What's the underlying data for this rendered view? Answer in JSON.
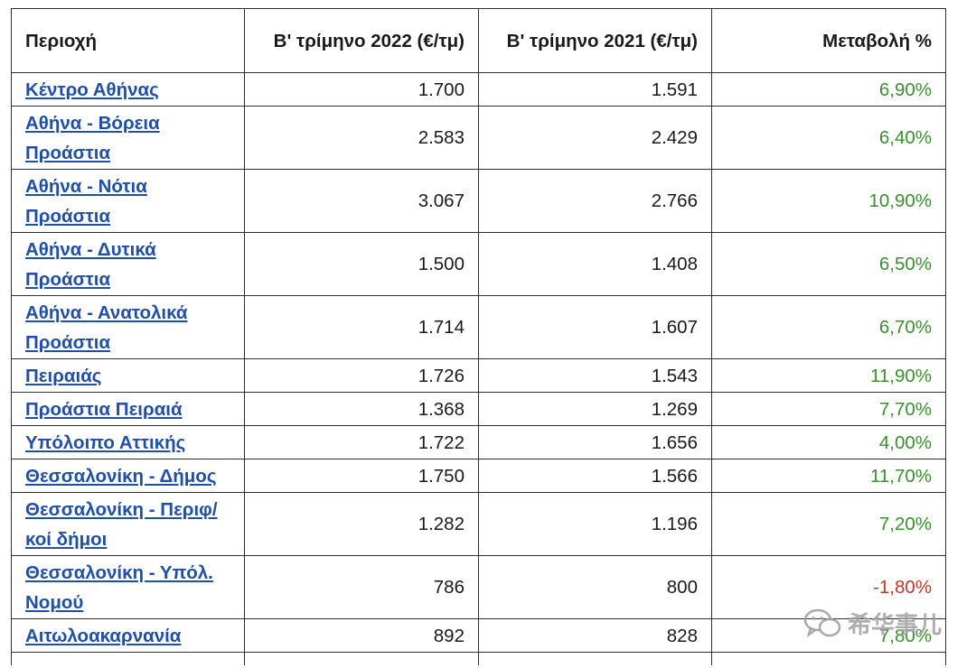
{
  "table": {
    "headers": {
      "area": "Περιοχή",
      "q2_2022": "Β' τρίμηνο 2022 (€/τμ)",
      "q2_2021": "Β' τρίμηνο 2021 (€/τμ)",
      "change": "Μεταβολή %"
    },
    "rows": [
      {
        "area": "Κέντρο Αθήνας",
        "q2_2022": "1.700",
        "q2_2021": "1.591",
        "change": "6,90%",
        "negative": false
      },
      {
        "area": "Αθήνα - Βόρεια Προάστια",
        "q2_2022": "2.583",
        "q2_2021": "2.429",
        "change": "6,40%",
        "negative": false
      },
      {
        "area": "Αθήνα - Νότια Προάστια",
        "q2_2022": "3.067",
        "q2_2021": "2.766",
        "change": "10,90%",
        "negative": false
      },
      {
        "area": "Αθήνα - Δυτικά Προάστια",
        "q2_2022": "1.500",
        "q2_2021": "1.408",
        "change": "6,50%",
        "negative": false
      },
      {
        "area": "Αθήνα - Ανατολικά Προάστια",
        "q2_2022": "1.714",
        "q2_2021": "1.607",
        "change": "6,70%",
        "negative": false
      },
      {
        "area": "Πειραιάς",
        "q2_2022": "1.726",
        "q2_2021": "1.543",
        "change": "11,90%",
        "negative": false
      },
      {
        "area": "Προάστια Πειραιά",
        "q2_2022": "1.368",
        "q2_2021": "1.269",
        "change": "7,70%",
        "negative": false
      },
      {
        "area": "Υπόλοιπο Αττικής",
        "q2_2022": "1.722",
        "q2_2021": "1.656",
        "change": "4,00%",
        "negative": false
      },
      {
        "area": "Θεσσαλονίκη - Δήμος",
        "q2_2022": "1.750",
        "q2_2021": "1.566",
        "change": "11,70%",
        "negative": false
      },
      {
        "area": "Θεσσαλονίκη - Περιφ/κοί δήμοι",
        "q2_2022": "1.282",
        "q2_2021": "1.196",
        "change": "7,20%",
        "negative": false
      },
      {
        "area": "Θεσσαλονίκη - Υπόλ. Νομού",
        "q2_2022": "786",
        "q2_2021": "800",
        "change": "-1,80%",
        "negative": true
      },
      {
        "area": "Αιτωλοακαρνανία",
        "q2_2022": "892",
        "q2_2021": "828",
        "change": "7,80%",
        "negative": false
      }
    ]
  },
  "watermark": {
    "text": "希华事儿",
    "icon": "wechat-icon"
  },
  "colors": {
    "link": "#1f4fa6",
    "positive": "#3a8f2e",
    "negative": "#c0392b",
    "border": "#2f2f2f"
  }
}
